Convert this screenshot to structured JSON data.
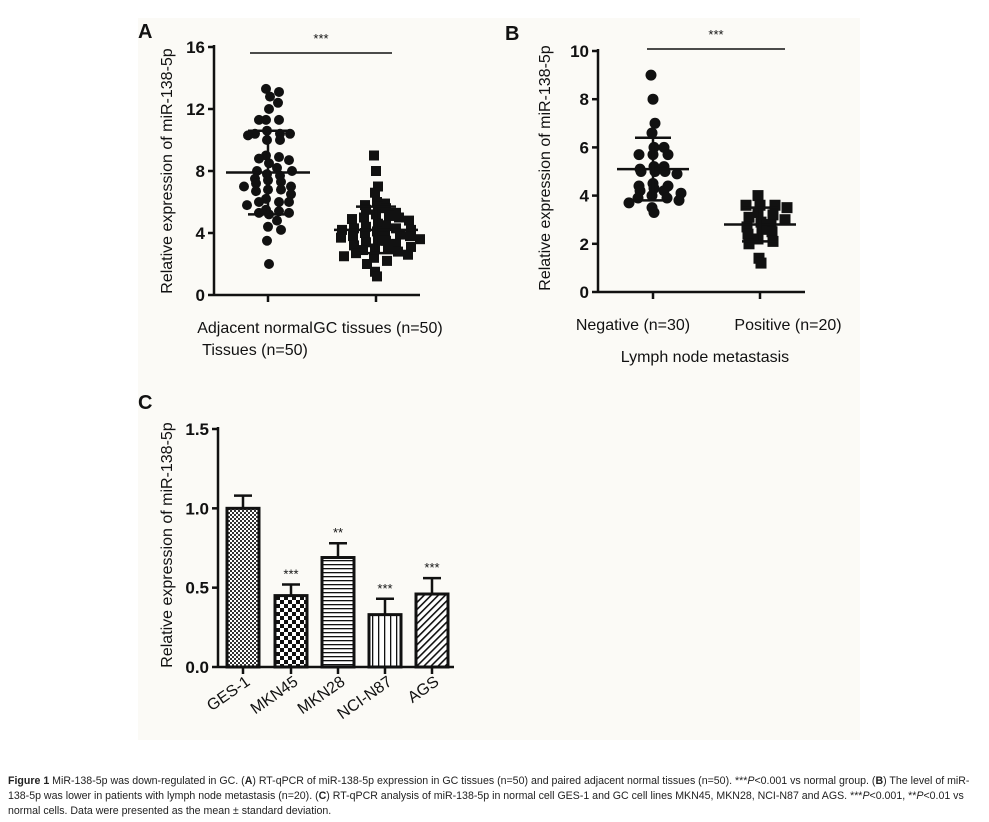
{
  "chart_data": [
    {
      "panel": "A",
      "type": "scatter",
      "ylabel": "Relative expression of miR-138-5p",
      "ylim": [
        0,
        16
      ],
      "yticks": [
        "0",
        "4",
        "8",
        "12",
        "16"
      ],
      "categories": [
        "Adjacent normal Tissues (n=50)",
        "GC tissues (n=50)"
      ],
      "category_lines": [
        [
          "Adjacent normal",
          "Tissues (n=50)"
        ],
        [
          "GC tissues (n=50)"
        ]
      ],
      "significance": "***",
      "series": [
        {
          "marker": "circle",
          "mean": 7.9,
          "sd": 2.7,
          "values": [
            13.3,
            13.1,
            12.8,
            12.4,
            12.0,
            11.3,
            11.3,
            11.3,
            10.6,
            10.4,
            10.4,
            10.4,
            10.3,
            10.0,
            10.0,
            9.0,
            8.9,
            8.8,
            8.7,
            8.5,
            8.2,
            8.0,
            8.0,
            7.8,
            7.7,
            7.5,
            7.4,
            7.3,
            7.2,
            7.0,
            7.0,
            6.8,
            6.8,
            6.7,
            6.5,
            6.2,
            6.0,
            6.0,
            6.0,
            5.8,
            5.5,
            5.4,
            5.3,
            5.3,
            5.2,
            4.8,
            4.4,
            4.2,
            3.5,
            2.0
          ]
        },
        {
          "marker": "square",
          "mean": 4.2,
          "sd": 1.5,
          "values": [
            9.0,
            8.0,
            7.0,
            6.6,
            6.0,
            5.9,
            5.8,
            5.7,
            5.6,
            5.5,
            5.3,
            5.2,
            5.1,
            5.0,
            5.0,
            4.9,
            4.8,
            4.6,
            4.5,
            4.4,
            4.3,
            4.3,
            4.2,
            4.2,
            4.1,
            4.0,
            4.0,
            3.9,
            3.8,
            3.8,
            3.7,
            3.6,
            3.5,
            3.5,
            3.4,
            3.3,
            3.2,
            3.1,
            3.0,
            3.0,
            2.9,
            2.8,
            2.7,
            2.6,
            2.5,
            2.4,
            2.2,
            2.0,
            1.5,
            1.2
          ]
        }
      ]
    },
    {
      "panel": "B",
      "type": "scatter",
      "ylabel": "Relative expression of miR-138-5p",
      "xlabel": "Lymph node metastasis",
      "ylim": [
        0,
        10
      ],
      "yticks": [
        "0",
        "2",
        "4",
        "6",
        "8",
        "10"
      ],
      "categories": [
        "Negative (n=30)",
        "Positive (n=20)"
      ],
      "significance": "***",
      "series": [
        {
          "marker": "circle",
          "mean": 5.1,
          "sd": 1.3,
          "values": [
            9.0,
            8.0,
            7.0,
            6.6,
            6.0,
            6.0,
            5.7,
            5.7,
            5.7,
            5.2,
            5.2,
            5.1,
            5.0,
            5.0,
            5.0,
            4.9,
            4.5,
            4.4,
            4.4,
            4.3,
            4.2,
            4.2,
            4.1,
            4.0,
            3.9,
            3.9,
            3.8,
            3.7,
            3.5,
            3.3
          ]
        },
        {
          "marker": "square",
          "mean": 2.8,
          "sd": 0.7,
          "values": [
            4.0,
            3.6,
            3.6,
            3.6,
            3.5,
            3.3,
            3.2,
            3.1,
            3.0,
            2.9,
            2.8,
            2.7,
            2.6,
            2.5,
            2.4,
            2.2,
            2.1,
            2.0,
            1.4,
            1.2
          ]
        }
      ]
    },
    {
      "panel": "C",
      "type": "bar",
      "ylabel": "Relative expression of miR-138-5p",
      "ylim": [
        0,
        1.5
      ],
      "yticks": [
        "0.0",
        "0.5",
        "1.0",
        "1.5"
      ],
      "categories": [
        "GES-1",
        "MKN45",
        "MKN28",
        "NCI-N87",
        "AGS"
      ],
      "values": [
        1.0,
        0.45,
        0.69,
        0.33,
        0.46
      ],
      "errors": [
        0.08,
        0.07,
        0.09,
        0.1,
        0.1
      ],
      "annotations": [
        "",
        "***",
        "**",
        "***",
        "***"
      ],
      "patterns": [
        "fine-check",
        "checker",
        "horizontal-lines",
        "vertical-lines",
        "diagonal-lines"
      ]
    }
  ],
  "caption": {
    "figure_label": "Figure 1",
    "title": " MiR-138-5p was down-regulated in GC. (",
    "a_label": "A",
    "a_text": ") RT-qPCR of miR-138-5p expression in GC tissues (n=50) and paired adjacent normal tissues (n=50). ***",
    "p1": "P",
    "a_text2": "<0.001 vs normal group. (",
    "b_label": "B",
    "b_text": ") The level of miR-138-5p was lower in patients with lymph node metastasis (n=20). (",
    "c_label": "C",
    "c_text": ") RT-qPCR analysis of miR-138-5p in normal cell GES-1 and GC cell lines MKN45, MKN28, NCI-N87 and AGS. ***",
    "p2": "P",
    "c_text2": "<0.001, **",
    "p3": "P",
    "c_text3": "<0.01 vs normal cells. Data were presented as the mean ± standard deviation."
  },
  "colors": {
    "ink": "#111111",
    "panel_bg": "#fbfaf6"
  }
}
